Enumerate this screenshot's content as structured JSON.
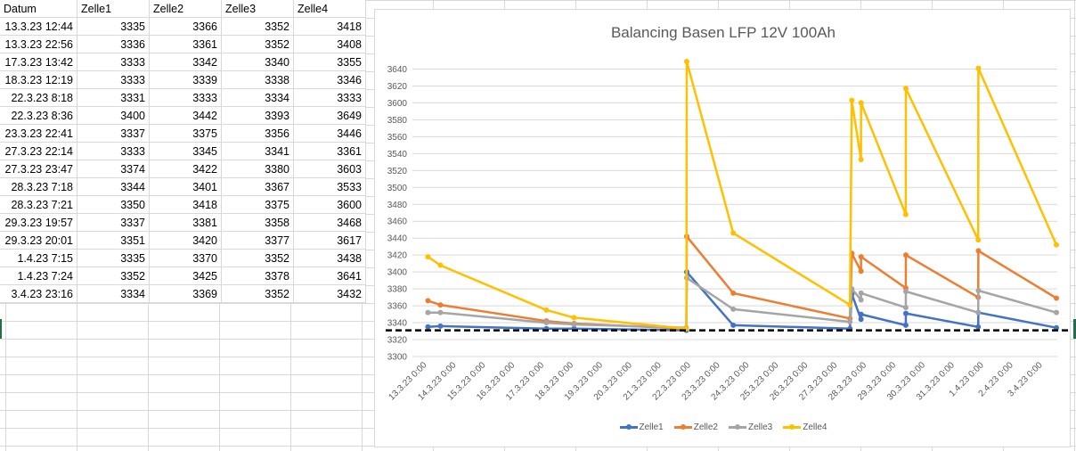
{
  "sheet": {
    "headers": [
      "Datum",
      "Zelle1",
      "Zelle2",
      "Zelle3",
      "Zelle4"
    ],
    "rows": [
      [
        "13.3.23 12:44",
        "3335",
        "3366",
        "3352",
        "3418"
      ],
      [
        "13.3.23 22:56",
        "3336",
        "3361",
        "3352",
        "3408"
      ],
      [
        "17.3.23 13:42",
        "3333",
        "3342",
        "3340",
        "3355"
      ],
      [
        "18.3.23 12:19",
        "3333",
        "3339",
        "3338",
        "3346"
      ],
      [
        "22.3.23 8:18",
        "3331",
        "3333",
        "3334",
        "3333"
      ],
      [
        "22.3.23 8:36",
        "3400",
        "3442",
        "3393",
        "3649"
      ],
      [
        "23.3.23 22:41",
        "3337",
        "3375",
        "3356",
        "3446"
      ],
      [
        "27.3.23 22:14",
        "3333",
        "3345",
        "3341",
        "3361"
      ],
      [
        "27.3.23 23:47",
        "3374",
        "3422",
        "3380",
        "3603"
      ],
      [
        "28.3.23 7:18",
        "3344",
        "3401",
        "3367",
        "3533"
      ],
      [
        "28.3.23 7:21",
        "3350",
        "3418",
        "3375",
        "3600"
      ],
      [
        "29.3.23 19:57",
        "3337",
        "3381",
        "3358",
        "3468"
      ],
      [
        "29.3.23 20:01",
        "3351",
        "3420",
        "3377",
        "3617"
      ],
      [
        "1.4.23 7:15",
        "3335",
        "3370",
        "3352",
        "3438"
      ],
      [
        "1.4.23 7:24",
        "3352",
        "3425",
        "3378",
        "3641"
      ],
      [
        "3.4.23 23:16",
        "3334",
        "3369",
        "3352",
        "3432"
      ]
    ]
  },
  "chart_data": {
    "type": "line",
    "title": "Balancing Basen LFP 12V 100Ah",
    "xlabel": "",
    "ylabel": "",
    "ylim": [
      3300,
      3650
    ],
    "yticks": [
      "3300",
      "3320",
      "3340",
      "3360",
      "3380",
      "3400",
      "3420",
      "3440",
      "3460",
      "3480",
      "3500",
      "3520",
      "3540",
      "3560",
      "3580",
      "3600",
      "3620",
      "3640"
    ],
    "xticks": [
      "13.3.23 0:00",
      "14.3.23 0:00",
      "15.3.23 0:00",
      "16.3.23 0:00",
      "17.3.23 0:00",
      "18.3.23 0:00",
      "19.3.23 0:00",
      "20.3.23 0:00",
      "21.3.23 0:00",
      "22.3.23 0:00",
      "23.3.23 0:00",
      "24.3.23 0:00",
      "25.3.23 0:00",
      "26.3.23 0:00",
      "27.3.23 0:00",
      "28.3.23 0:00",
      "29.3.23 0:00",
      "30.3.23 0:00",
      "31.3.23 0:00",
      "1.4.23 0:00",
      "2.4.23 0:00",
      "3.4.23 0:00"
    ],
    "x": [
      "2023-03-13 12:44",
      "2023-03-13 22:56",
      "2023-03-17 13:42",
      "2023-03-18 12:19",
      "2023-03-22 08:18",
      "2023-03-22 08:36",
      "2023-03-23 22:41",
      "2023-03-27 22:14",
      "2023-03-27 23:47",
      "2023-03-28 07:18",
      "2023-03-28 07:21",
      "2023-03-29 19:57",
      "2023-03-29 20:01",
      "2023-04-01 07:15",
      "2023-04-01 07:24",
      "2023-04-03 23:16"
    ],
    "series": [
      {
        "name": "Zelle1",
        "color": "#4472c4",
        "values": [
          3335,
          3336,
          3333,
          3333,
          3331,
          3400,
          3337,
          3333,
          3374,
          3344,
          3350,
          3337,
          3351,
          3335,
          3352,
          3334
        ]
      },
      {
        "name": "Zelle2",
        "color": "#ed7d31",
        "values": [
          3366,
          3361,
          3342,
          3339,
          3333,
          3442,
          3375,
          3345,
          3422,
          3401,
          3418,
          3381,
          3420,
          3370,
          3425,
          3369
        ]
      },
      {
        "name": "Zelle3",
        "color": "#a5a5a5",
        "values": [
          3352,
          3352,
          3340,
          3338,
          3334,
          3393,
          3356,
          3341,
          3380,
          3367,
          3375,
          3358,
          3377,
          3352,
          3378,
          3352
        ]
      },
      {
        "name": "Zelle4",
        "color": "#ffc000",
        "values": [
          3418,
          3408,
          3355,
          3346,
          3333,
          3649,
          3446,
          3361,
          3603,
          3533,
          3600,
          3468,
          3617,
          3438,
          3641,
          3432
        ]
      }
    ],
    "reference_line": {
      "value": 3331,
      "style": "dashed",
      "color": "#000000"
    },
    "grid": true,
    "legend": "bottom"
  }
}
